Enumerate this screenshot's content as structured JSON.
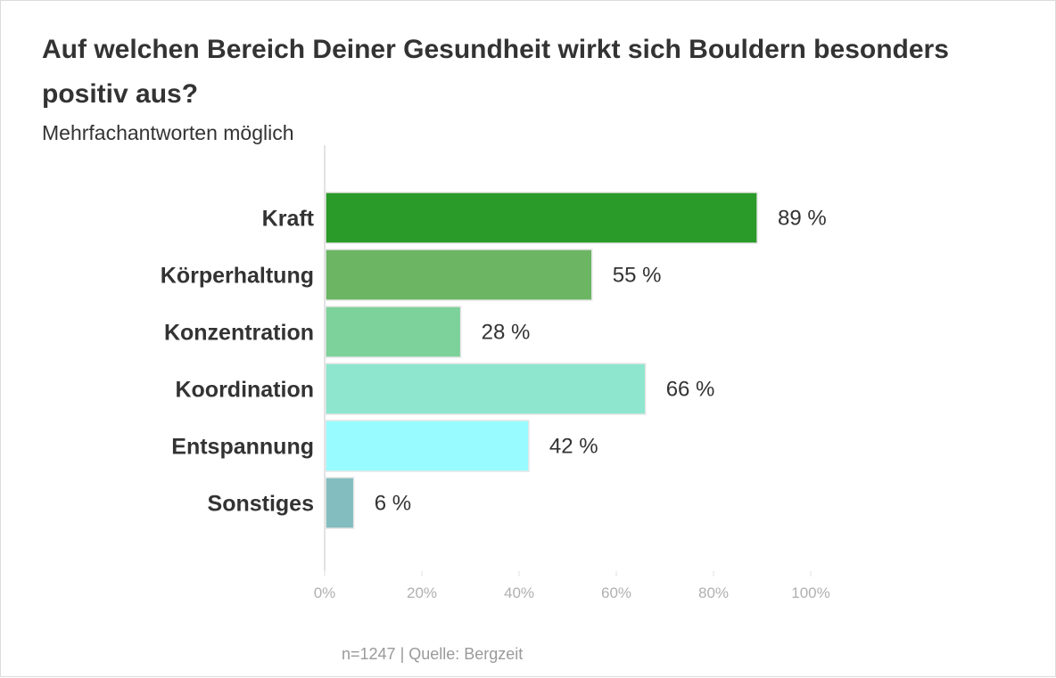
{
  "chart_data": {
    "type": "bar",
    "orientation": "horizontal",
    "title": "Auf welchen Bereich Deiner Gesundheit wirkt sich Bouldern besonders positiv aus?",
    "subtitle": "Mehrfachantworten möglich",
    "categories": [
      "Kraft",
      "Körperhaltung",
      "Konzentration",
      "Koordination",
      "Entspannung",
      "Sonstiges"
    ],
    "values": [
      89,
      55,
      28,
      66,
      42,
      6
    ],
    "value_labels": [
      "89 %",
      "55 %",
      "28 %",
      "66 %",
      "42 %",
      "6 %"
    ],
    "colors": [
      "#2a9a28",
      "#6bb563",
      "#7dd19a",
      "#8de6cd",
      "#98fbff",
      "#84bdbf"
    ],
    "xlim": [
      0,
      100
    ],
    "ticks": [
      0,
      20,
      40,
      60,
      80,
      100
    ],
    "tick_labels": [
      "0%",
      "20%",
      "40%",
      "60%",
      "80%",
      "100%"
    ],
    "xlabel": "",
    "ylabel": "",
    "grid": false,
    "legend": "none"
  },
  "footer": {
    "source": "n=1247 | Quelle: Bergzeit"
  }
}
